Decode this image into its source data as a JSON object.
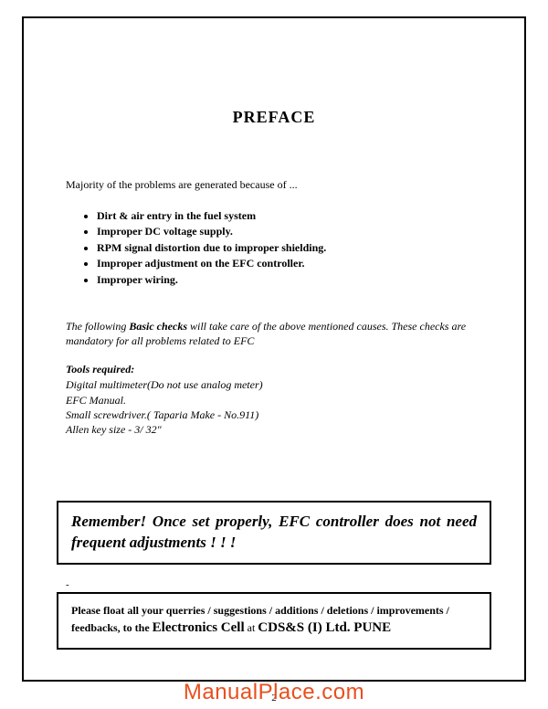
{
  "title": "PREFACE",
  "intro": "Majority of the problems are generated because of ...",
  "bullets": [
    "Dirt & air entry in the fuel system",
    "Improper DC voltage supply.",
    "RPM signal distortion due to improper shielding.",
    "Improper adjustment on the EFC controller.",
    "Improper wiring."
  ],
  "checks_note_pre": "The following ",
  "checks_note_bold": "Basic checks",
  "checks_note_post": " will take care of  the above mentioned causes. These checks are mandatory for all problems related to EFC",
  "tools_title": "Tools required:",
  "tools": [
    "Digital multimeter(Do not use analog meter)",
    "EFC Manual.",
    "Small screwdriver.( Taparia Make - No.911)",
    "Allen key size - 3/ 32\""
  ],
  "callout1": "Remember! Once set properly, EFC controller does not need  frequent adjustments ! ! !",
  "dash": "-",
  "callout2_line1": "Please float all your querries / suggestions / additions / deletions / improvements /",
  "callout2_line2_pre": "feedbacks, to the ",
  "callout2_line2_big": "Electronics Cell",
  "callout2_line2_mid": " at ",
  "callout2_line2_end": "CDS&S (I) Ltd. PUNE",
  "page_number": "2",
  "watermark": "ManualPlace.com",
  "colors": {
    "border": "#000000",
    "text": "#000000",
    "watermark": "#e94f1d",
    "background": "#ffffff"
  },
  "fonts": {
    "body": "Times New Roman",
    "title_size_pt": 18,
    "body_size_pt": 12,
    "callout1_size_pt": 17,
    "watermark_size_pt": 24
  }
}
